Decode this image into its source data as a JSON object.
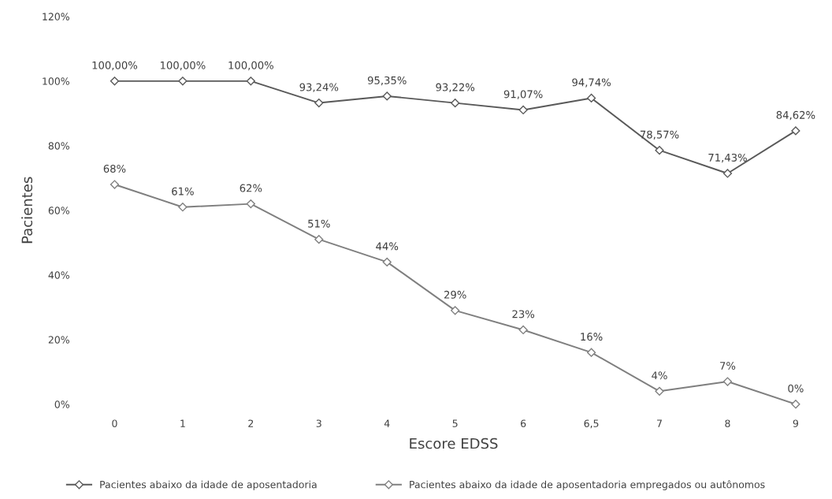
{
  "chart_data": {
    "type": "line",
    "xlabel": "Escore EDSS",
    "ylabel": "Pacientes",
    "categories": [
      "0",
      "1",
      "2",
      "3",
      "4",
      "5",
      "6",
      "6,5",
      "7",
      "8",
      "9"
    ],
    "series": [
      {
        "name": "Pacientes abaixo da idade de aposentadoria",
        "color": "#595959",
        "values": [
          100.0,
          100.0,
          100.0,
          93.24,
          95.35,
          93.22,
          91.07,
          94.74,
          78.57,
          71.43,
          84.62
        ],
        "value_labels": [
          "100,00%",
          "100,00%",
          "100,00%",
          "93,24%",
          "95,35%",
          "93,22%",
          "91,07%",
          "94,74%",
          "78,57%",
          "71,43%",
          "84,62%"
        ]
      },
      {
        "name": "Pacientes abaixo da idade de aposentadoria empregados ou autônomos",
        "color": "#7f7f7f",
        "values": [
          68,
          61,
          62,
          51,
          44,
          29,
          23,
          16,
          4,
          7,
          0
        ],
        "value_labels": [
          "68%",
          "61%",
          "62%",
          "51%",
          "44%",
          "29%",
          "23%",
          "16%",
          "4%",
          "7%",
          "0%"
        ]
      }
    ],
    "ylim": [
      0,
      120
    ],
    "yticks": [
      {
        "value": 0,
        "label": "0%"
      },
      {
        "value": 20,
        "label": "20%"
      },
      {
        "value": 40,
        "label": "40%"
      },
      {
        "value": 60,
        "label": "60%"
      },
      {
        "value": 80,
        "label": "80%"
      },
      {
        "value": 100,
        "label": "100%"
      },
      {
        "value": 120,
        "label": "120%"
      }
    ],
    "legend": "bottom",
    "marker": "diamond",
    "line_style": "solid"
  }
}
